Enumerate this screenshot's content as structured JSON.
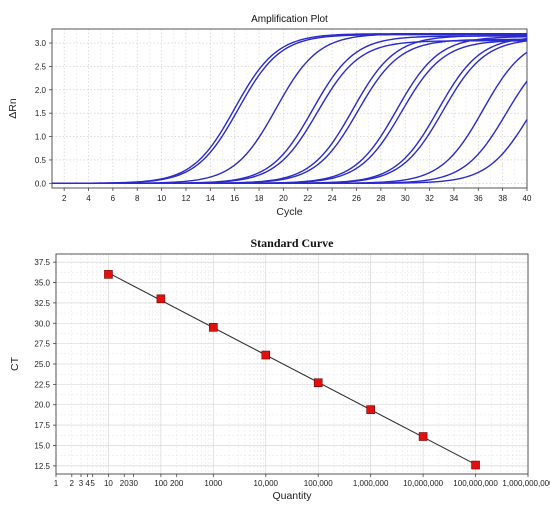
{
  "chart_data": [
    {
      "type": "line",
      "title": "Amplification Plot",
      "xlabel": "Cycle",
      "ylabel": "ΔRn",
      "xlim": [
        1,
        40
      ],
      "ylim": [
        -0.1,
        3.3
      ],
      "xticks": [
        2,
        4,
        6,
        8,
        10,
        12,
        14,
        16,
        18,
        20,
        22,
        24,
        26,
        28,
        30,
        32,
        34,
        36,
        38,
        40
      ],
      "yticks": [
        0.0,
        0.5,
        1.0,
        1.5,
        2.0,
        2.5,
        3.0
      ],
      "ytick_labels": [
        "0.0",
        "0.5",
        "1.0",
        "1.5",
        "2.0",
        "2.5",
        "3.0"
      ],
      "grid": true,
      "line_color": "#2a2acf",
      "series": [
        {
          "midpoint": 16.0,
          "plateau": 3.2
        },
        {
          "midpoint": 16.3,
          "plateau": 3.18
        },
        {
          "midpoint": 19.4,
          "plateau": 3.2
        },
        {
          "midpoint": 22.4,
          "plateau": 3.15
        },
        {
          "midpoint": 22.8,
          "plateau": 3.05
        },
        {
          "midpoint": 25.7,
          "plateau": 3.16
        },
        {
          "midpoint": 26.1,
          "plateau": 3.08
        },
        {
          "midpoint": 29.3,
          "plateau": 3.14
        },
        {
          "midpoint": 29.7,
          "plateau": 3.06
        },
        {
          "midpoint": 32.7,
          "plateau": 3.14
        },
        {
          "midpoint": 33.1,
          "plateau": 3.1
        },
        {
          "midpoint": 36.4,
          "plateau": 3.15
        },
        {
          "midpoint": 38.3,
          "plateau": 3.0
        },
        {
          "midpoint": 40.2,
          "plateau": 2.9
        }
      ]
    },
    {
      "type": "scatter",
      "title": "Standard Curve",
      "xlabel": "Quantity",
      "ylabel": "CT",
      "xscale": "log",
      "xlim": [
        1,
        1000000000
      ],
      "ylim": [
        11.5,
        38.5
      ],
      "xtick_labels": [
        {
          "value": 1,
          "label": "1"
        },
        {
          "value": 2,
          "label": "2"
        },
        {
          "value": 3,
          "label": "3"
        },
        {
          "value": 4,
          "label": "4"
        },
        {
          "value": 5,
          "label": "5"
        },
        {
          "value": 10,
          "label": "10"
        },
        {
          "value": 20,
          "label": "20"
        },
        {
          "value": 30,
          "label": "30"
        },
        {
          "value": 100,
          "label": "100"
        },
        {
          "value": 200,
          "label": "200"
        },
        {
          "value": 1000,
          "label": "1000"
        },
        {
          "value": 10000,
          "label": "10,000"
        },
        {
          "value": 100000,
          "label": "100,000"
        },
        {
          "value": 1000000,
          "label": "1,000,000"
        },
        {
          "value": 10000000,
          "label": "10,000,000"
        },
        {
          "value": 100000000,
          "label": "100,000,000"
        },
        {
          "value": 1000000000,
          "label": "1,000,000,000"
        }
      ],
      "yticks": [
        12.5,
        15.0,
        17.5,
        20.0,
        22.5,
        25.0,
        27.5,
        30.0,
        32.5,
        35.0,
        37.5
      ],
      "ytick_labels": [
        "12.5",
        "15.0",
        "17.5",
        "20.0",
        "22.5",
        "25.0",
        "27.5",
        "30.0",
        "32.5",
        "35.0",
        "37.5"
      ],
      "grid": true,
      "marker_color": "#e01010",
      "line_color": "#333333",
      "x": [
        10,
        100,
        1000,
        10000,
        100000,
        1000000,
        10000000,
        100000000
      ],
      "y": [
        36.0,
        33.0,
        29.5,
        26.1,
        22.7,
        19.4,
        16.1,
        12.6
      ]
    }
  ]
}
